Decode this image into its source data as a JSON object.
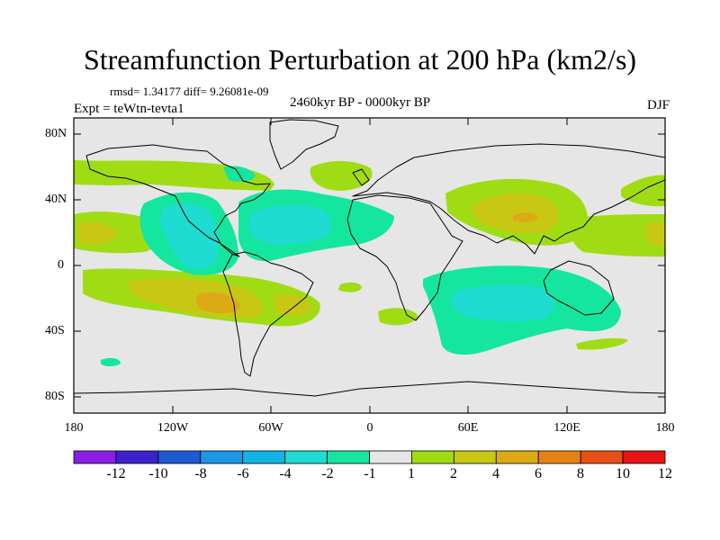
{
  "title": "Streamfunction Perturbation at 200 hPa (km2/s)",
  "stats": "rmsd= 1.34177 diff= 9.26081e-09",
  "experiment": "Expt = teWtn-tevta1",
  "period": "2460kyr BP - 0000kyr BP",
  "season": "DJF",
  "x_ticks": [
    "180",
    "120W",
    "60W",
    "0",
    "60E",
    "120E",
    "180"
  ],
  "y_ticks": [
    "80N",
    "40N",
    "0",
    "40S",
    "80S"
  ],
  "colorbar": {
    "labels": [
      "-12",
      "-10",
      "-8",
      "-6",
      "-4",
      "-2",
      "-1",
      "1",
      "2",
      "4",
      "6",
      "8",
      "10",
      "12"
    ],
    "colors": [
      "#8a1ee6",
      "#3c22cc",
      "#1e5ad2",
      "#1e96e6",
      "#10b4e6",
      "#1edcd2",
      "#14e6a0",
      "#e6e6e6",
      "#a0dc14",
      "#c8c814",
      "#dcaa14",
      "#e68214",
      "#e65014",
      "#e61414"
    ]
  },
  "colors": {
    "background": "#e6e6e6",
    "land_outline": "#000000"
  }
}
